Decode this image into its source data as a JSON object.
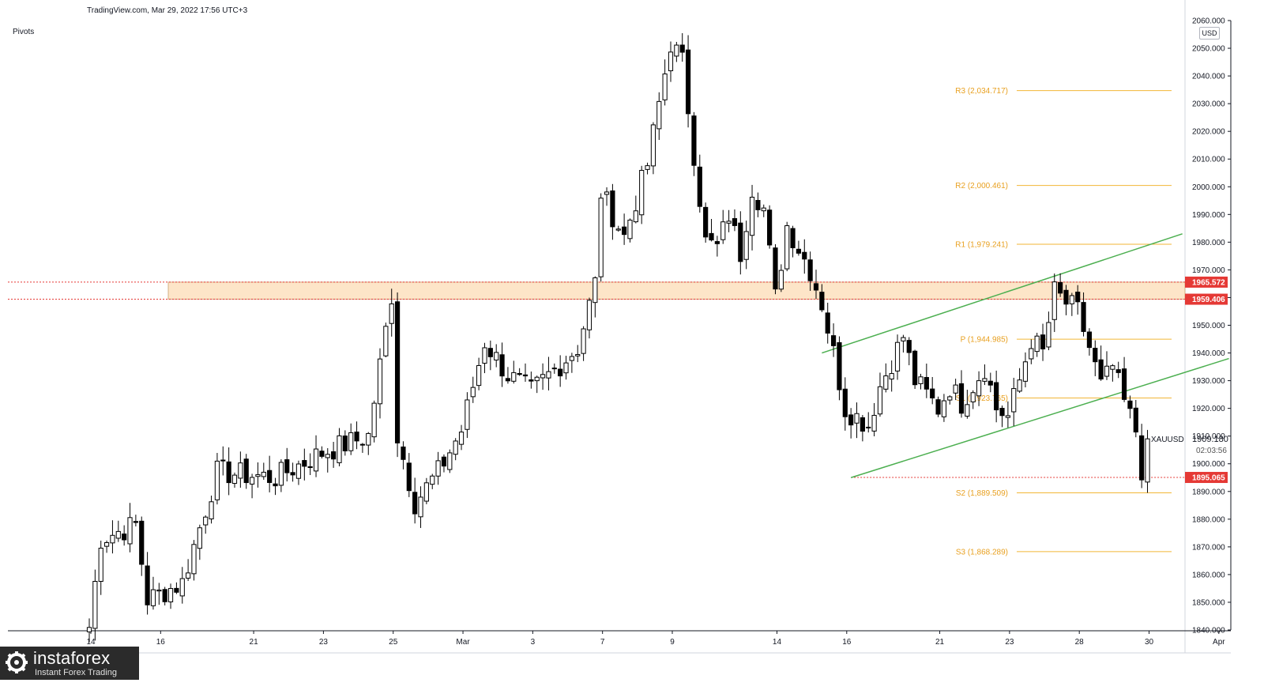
{
  "header": {
    "source": "TradingView.com, Mar 29, 2022 17:56 UTC+3",
    "indicator": "Pivots"
  },
  "price_scale": {
    "currency": "USD",
    "symbol": "XAUUSD",
    "current_price": "1909.180",
    "countdown": "02:03:56"
  },
  "logo": {
    "name": "instaforex",
    "tagline": "Instant Forex Trading"
  },
  "colors": {
    "up_candle": "#ffffff",
    "down_candle": "#000000",
    "pivot_line": "#f2b636",
    "pivot_label": "#e8a020",
    "trend_line": "#4caf50",
    "zone_fill": "#fde5c8",
    "level_red": "#e53935"
  },
  "chart_data": {
    "type": "candlestick",
    "title": "",
    "ylim": [
      1840,
      2060
    ],
    "y_ticks": [
      "1840.000",
      "1850.000",
      "1860.000",
      "1870.000",
      "1880.000",
      "1890.000",
      "1900.000",
      "1910.000",
      "1920.000",
      "1930.000",
      "1940.000",
      "1950.000",
      "1960.000",
      "1970.000",
      "1980.000",
      "1990.000",
      "2000.000",
      "2010.000",
      "2020.000",
      "2030.000",
      "2040.000",
      "2050.000",
      "2060.000"
    ],
    "x_ticks": [
      {
        "label": "14",
        "bar": 0
      },
      {
        "label": "16",
        "bar": 12
      },
      {
        "label": "21",
        "bar": 28
      },
      {
        "label": "23",
        "bar": 40
      },
      {
        "label": "25",
        "bar": 52
      },
      {
        "label": "Mar",
        "bar": 64
      },
      {
        "label": "3",
        "bar": 76
      },
      {
        "label": "7",
        "bar": 88
      },
      {
        "label": "9",
        "bar": 100
      },
      {
        "label": "14",
        "bar": 118
      },
      {
        "label": "16",
        "bar": 130
      },
      {
        "label": "21",
        "bar": 146
      },
      {
        "label": "23",
        "bar": 158
      },
      {
        "label": "28",
        "bar": 170
      },
      {
        "label": "30",
        "bar": 182
      },
      {
        "label": "Apr",
        "bar": 194
      }
    ],
    "ohlc_key_points": [
      {
        "bar": 0,
        "price": 1841
      },
      {
        "bar": 2,
        "price": 1873
      },
      {
        "bar": 8,
        "price": 1878
      },
      {
        "bar": 10,
        "price": 1851
      },
      {
        "bar": 16,
        "price": 1857
      },
      {
        "bar": 22,
        "price": 1897
      },
      {
        "bar": 32,
        "price": 1895
      },
      {
        "bar": 40,
        "price": 1904
      },
      {
        "bar": 48,
        "price": 1910
      },
      {
        "bar": 52,
        "price": 1961
      },
      {
        "bar": 53,
        "price": 1910
      },
      {
        "bar": 56,
        "price": 1886
      },
      {
        "bar": 60,
        "price": 1897
      },
      {
        "bar": 64,
        "price": 1912
      },
      {
        "bar": 68,
        "price": 1944
      },
      {
        "bar": 72,
        "price": 1932
      },
      {
        "bar": 76,
        "price": 1926
      },
      {
        "bar": 80,
        "price": 1934
      },
      {
        "bar": 84,
        "price": 1942
      },
      {
        "bar": 87,
        "price": 1965
      },
      {
        "bar": 88,
        "price": 1998
      },
      {
        "bar": 92,
        "price": 1982
      },
      {
        "bar": 94,
        "price": 1995
      },
      {
        "bar": 96,
        "price": 2008
      },
      {
        "bar": 100,
        "price": 2052
      },
      {
        "bar": 102,
        "price": 2045
      },
      {
        "bar": 104,
        "price": 2012
      },
      {
        "bar": 106,
        "price": 1980
      },
      {
        "bar": 108,
        "price": 1978
      },
      {
        "bar": 110,
        "price": 1990
      },
      {
        "bar": 112,
        "price": 1976
      },
      {
        "bar": 114,
        "price": 2000
      },
      {
        "bar": 116,
        "price": 1992
      },
      {
        "bar": 118,
        "price": 1960
      },
      {
        "bar": 120,
        "price": 1986
      },
      {
        "bar": 124,
        "price": 1970
      },
      {
        "bar": 126,
        "price": 1958
      },
      {
        "bar": 128,
        "price": 1940
      },
      {
        "bar": 130,
        "price": 1920
      },
      {
        "bar": 134,
        "price": 1914
      },
      {
        "bar": 136,
        "price": 1928
      },
      {
        "bar": 140,
        "price": 1946
      },
      {
        "bar": 142,
        "price": 1930
      },
      {
        "bar": 146,
        "price": 1920
      },
      {
        "bar": 148,
        "price": 1928
      },
      {
        "bar": 150,
        "price": 1922
      },
      {
        "bar": 154,
        "price": 1935
      },
      {
        "bar": 156,
        "price": 1920
      },
      {
        "bar": 158,
        "price": 1917
      },
      {
        "bar": 160,
        "price": 1930
      },
      {
        "bar": 162,
        "price": 1945
      },
      {
        "bar": 164,
        "price": 1940
      },
      {
        "bar": 166,
        "price": 1962
      },
      {
        "bar": 168,
        "price": 1958
      },
      {
        "bar": 170,
        "price": 1955
      },
      {
        "bar": 172,
        "price": 1942
      },
      {
        "bar": 174,
        "price": 1928
      },
      {
        "bar": 176,
        "price": 1935
      },
      {
        "bar": 178,
        "price": 1922
      },
      {
        "bar": 180,
        "price": 1912
      },
      {
        "bar": 181,
        "price": 1898
      },
      {
        "bar": 182,
        "price": 1909
      }
    ],
    "last_bar": 182,
    "pivot_levels": [
      {
        "label": "R3 (2,034.717)",
        "value": 2034.717
      },
      {
        "label": "R2 (2,000.461)",
        "value": 2000.461
      },
      {
        "label": "R1 (1,979.241)",
        "value": 1979.241
      },
      {
        "label": "P (1,944.985)",
        "value": 1944.985
      },
      {
        "label": "S1 (1,923.765)",
        "value": 1923.765
      },
      {
        "label": "S2 (1,889.509)",
        "value": 1889.509
      },
      {
        "label": "S3 (1,868.289)",
        "value": 1868.289
      }
    ],
    "resistance_zone": {
      "top": 1965.572,
      "bottom": 1959.406,
      "top_label": "1965.572",
      "bottom_label": "1959.406"
    },
    "support_level": {
      "value": 1895.065,
      "label": "1895.065",
      "from_bar": 131
    },
    "trend_lines": [
      {
        "from": {
          "bar": 126,
          "price": 1940
        },
        "to": {
          "bar": 188,
          "price": 1983
        }
      },
      {
        "from": {
          "bar": 131,
          "price": 1895
        },
        "to": {
          "bar": 196,
          "price": 1938
        }
      }
    ]
  }
}
